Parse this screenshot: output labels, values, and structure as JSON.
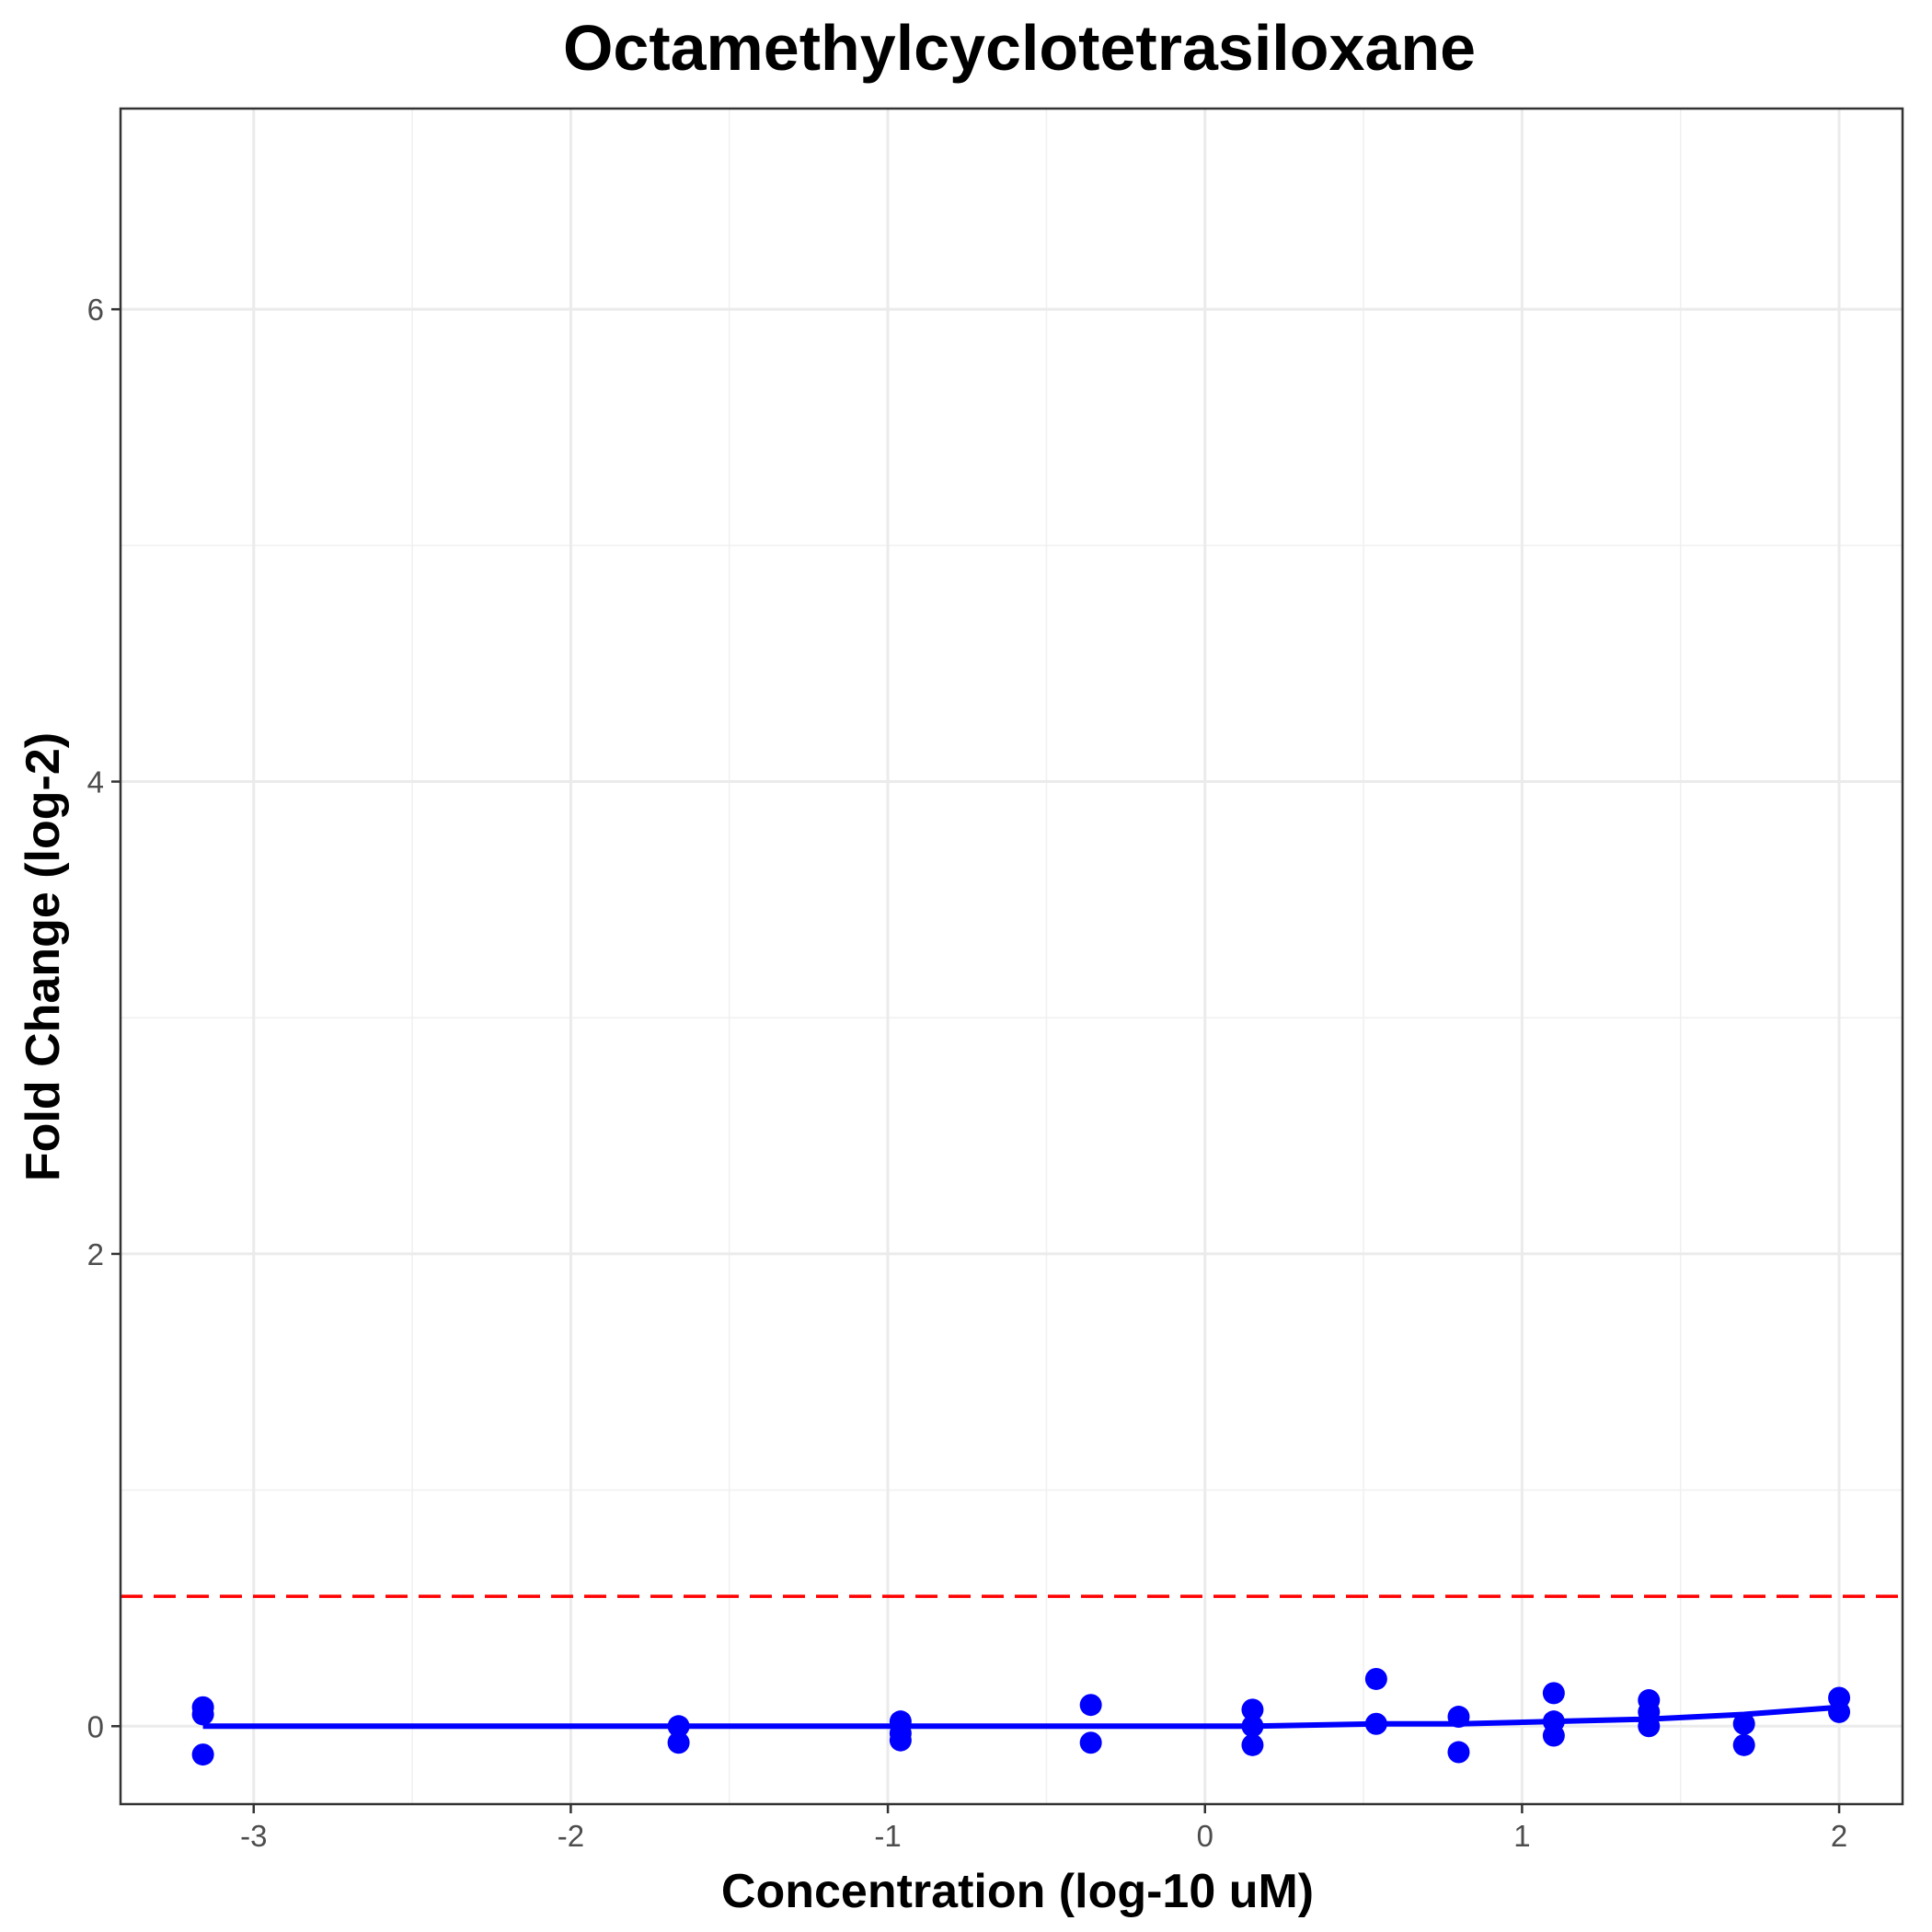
{
  "chart_data": {
    "type": "scatter",
    "title": "Octamethylcyclotetrasiloxane",
    "xlabel": "Concentration (log-10 uM)",
    "ylabel": "Fold Change (log-2)",
    "xlim": [
      -3.42,
      2.2
    ],
    "ylim": [
      -0.33,
      6.85
    ],
    "x_ticks": [
      -3,
      -2,
      -1,
      0,
      1,
      2
    ],
    "x_tick_labels": [
      "-3",
      "-2",
      "-1",
      "0",
      "1",
      "2"
    ],
    "y_ticks": [
      0,
      2,
      4,
      6
    ],
    "y_tick_labels": [
      "0",
      "2",
      "4",
      "6"
    ],
    "grid": true,
    "threshold": {
      "y": 0.55,
      "color": "#ff0000",
      "style": "dashed"
    },
    "points": {
      "color": "#0000ff",
      "x": [
        -3.16,
        -3.16,
        -3.16,
        -1.66,
        -1.66,
        -0.96,
        -0.96,
        -0.96,
        -0.36,
        -0.36,
        0.15,
        0.15,
        0.15,
        0.54,
        0.54,
        0.8,
        0.8,
        1.1,
        1.1,
        1.1,
        1.4,
        1.4,
        1.4,
        1.7,
        1.7,
        2.0,
        2.0
      ],
      "y": [
        0.08,
        0.05,
        -0.12,
        0.0,
        -0.07,
        0.02,
        -0.03,
        -0.06,
        0.09,
        -0.07,
        0.07,
        0.0,
        -0.08,
        0.2,
        0.01,
        0.04,
        -0.11,
        0.14,
        0.02,
        -0.04,
        0.11,
        0.06,
        0.0,
        0.01,
        -0.08,
        0.12,
        0.06
      ]
    },
    "fit_line": {
      "color": "#0000ff",
      "x": [
        -3.16,
        -1.66,
        -0.96,
        -0.36,
        0.15,
        0.54,
        0.8,
        1.1,
        1.4,
        1.7,
        2.0
      ],
      "y": [
        0.0,
        0.0,
        0.0,
        0.0,
        0.0,
        0.01,
        0.01,
        0.02,
        0.03,
        0.05,
        0.08
      ]
    }
  }
}
